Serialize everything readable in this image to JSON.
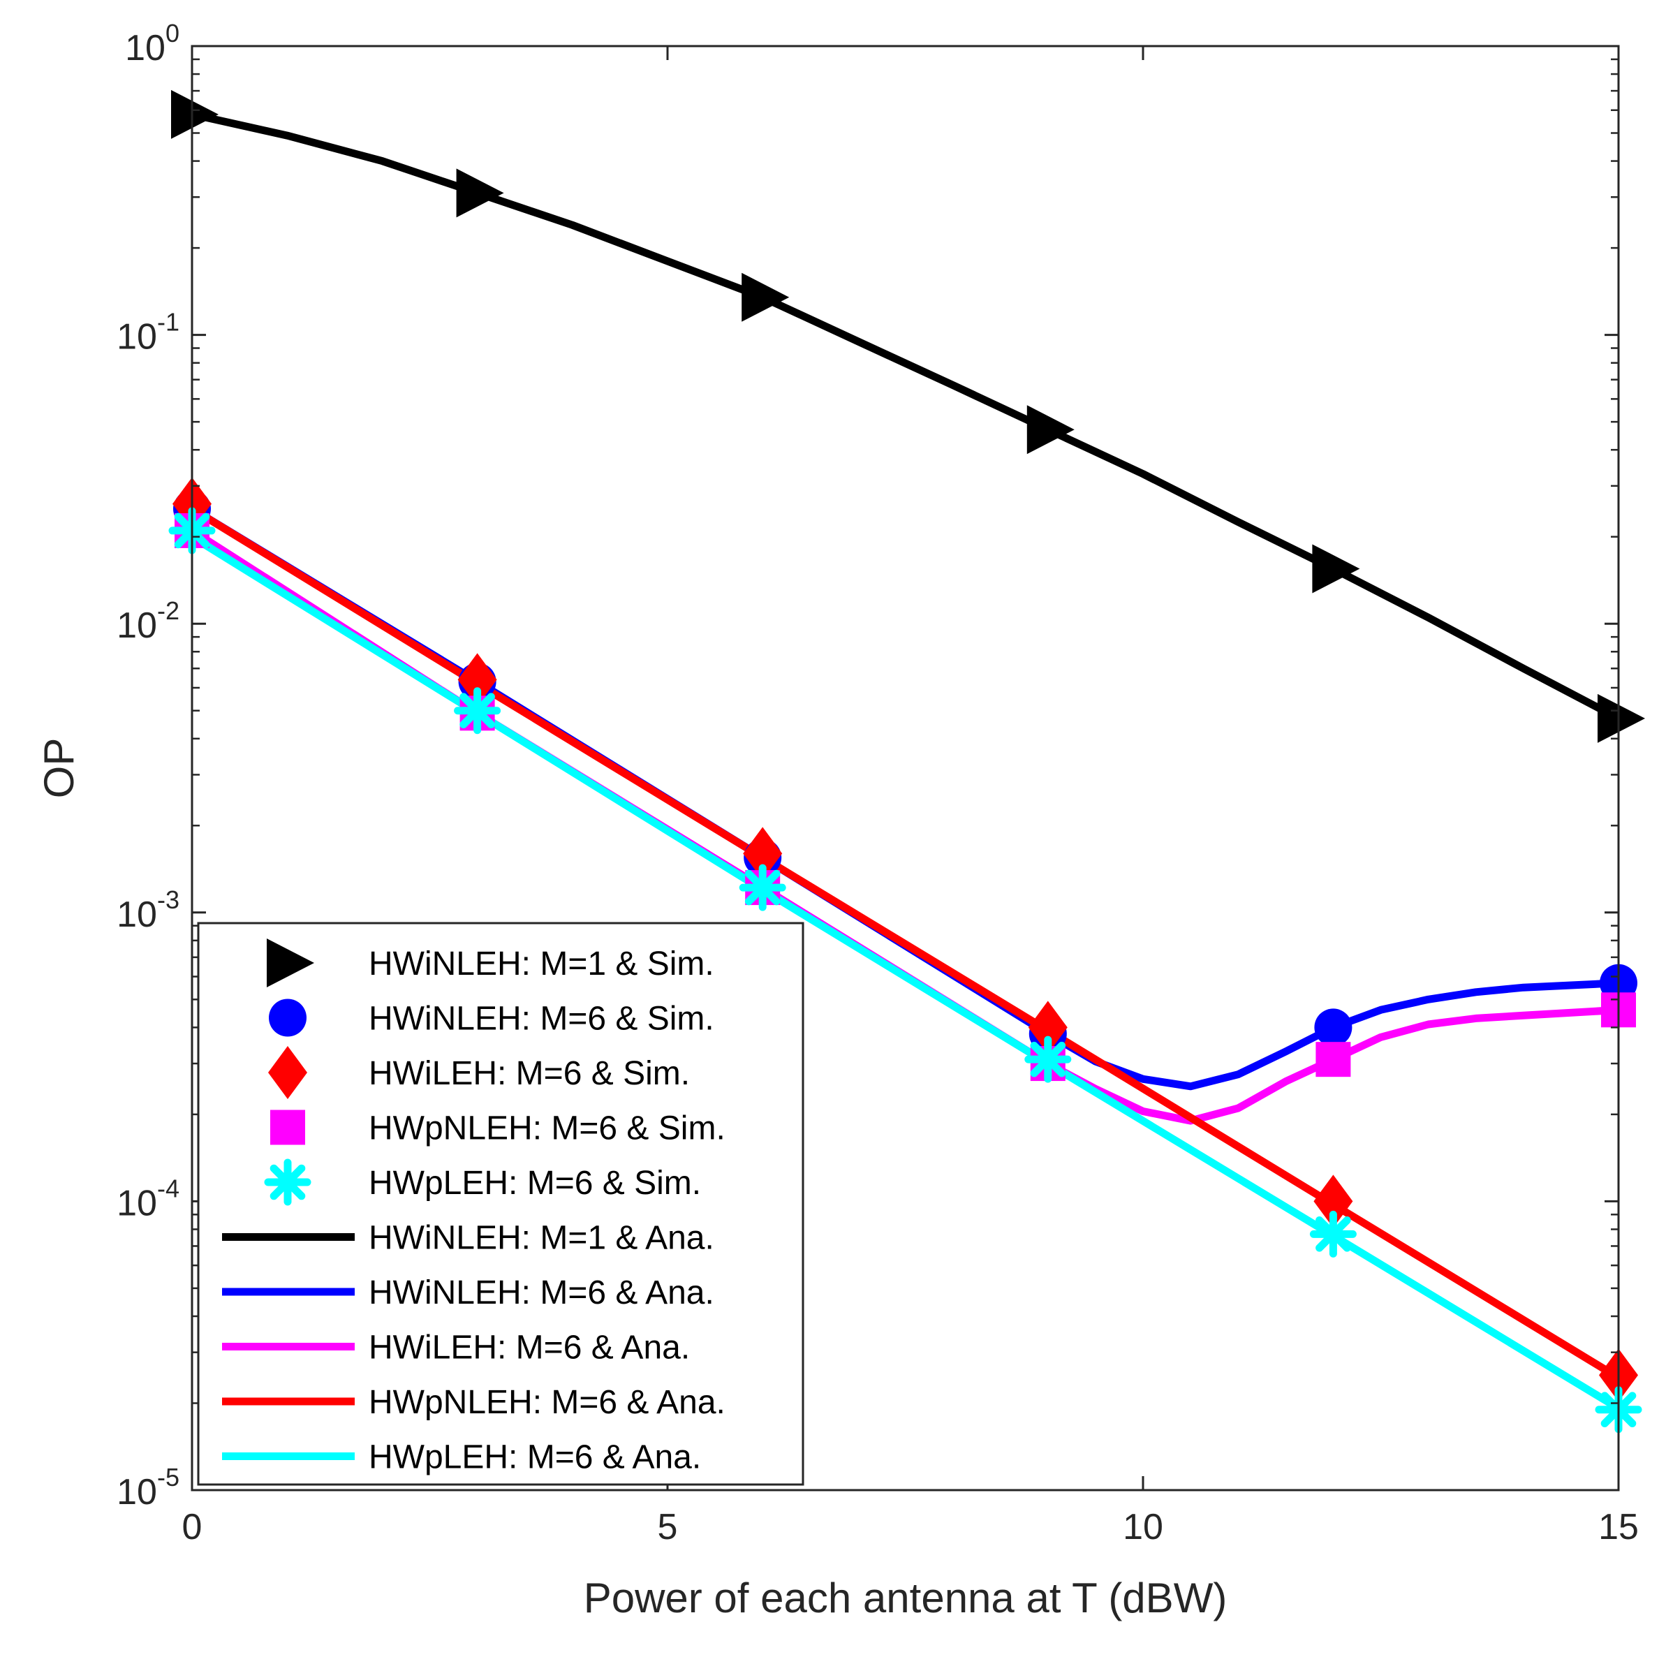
{
  "chart_data": {
    "type": "line",
    "title": "",
    "xlabel": "Power of each antenna at T (dBW)",
    "ylabel": "OP",
    "xlim": [
      0,
      15
    ],
    "ylim_log10": [
      -5,
      0
    ],
    "yscale": "log",
    "grid": false,
    "legend_position": "bottom-left",
    "x_ticks": [
      "0",
      "5",
      "10",
      "15"
    ],
    "x_tick_values": [
      0,
      5,
      10,
      15
    ],
    "y_ticks": [
      {
        "base": "10",
        "exp": "0",
        "value": 1
      },
      {
        "base": "10",
        "exp": "-1",
        "value": 0.1
      },
      {
        "base": "10",
        "exp": "-2",
        "value": 0.01
      },
      {
        "base": "10",
        "exp": "-3",
        "value": 0.001
      },
      {
        "base": "10",
        "exp": "-4",
        "value": 0.0001
      },
      {
        "base": "10",
        "exp": "-5",
        "value": 1e-05
      }
    ],
    "series": [
      {
        "name": "HWiNLEH: M=1 & Sim.",
        "kind": "markers",
        "marker": "triangle-right",
        "color": "#000000",
        "x": [
          0,
          3,
          6,
          9,
          12,
          15
        ],
        "y": [
          0.58,
          0.31,
          0.135,
          0.047,
          0.0155,
          0.0047
        ]
      },
      {
        "name": "HWiNLEH: M=6 & Sim.",
        "kind": "markers",
        "marker": "circle",
        "color": "#0000ff",
        "x": [
          0,
          3,
          6,
          9,
          12,
          15
        ],
        "y": [
          0.025,
          0.0063,
          0.00155,
          0.00038,
          0.0004,
          0.00057
        ]
      },
      {
        "name": "HWiLEH: M=6 & Sim.",
        "kind": "markers",
        "marker": "diamond",
        "color": "#ff0000",
        "x": [
          0,
          3,
          6,
          9,
          12,
          15
        ],
        "y": [
          0.026,
          0.0064,
          0.0016,
          0.0004,
          0.0001,
          2.5e-05
        ]
      },
      {
        "name": "HWpNLEH: M=6 & Sim.",
        "kind": "markers",
        "marker": "square",
        "color": "#ff00ff",
        "x": [
          0,
          3,
          6,
          9,
          12,
          15
        ],
        "y": [
          0.021,
          0.0049,
          0.00122,
          0.0003,
          0.00031,
          0.00046
        ]
      },
      {
        "name": "HWpLEH: M=6 & Sim.",
        "kind": "markers",
        "marker": "asterisk",
        "color": "#00ffff",
        "x": [
          0,
          3,
          6,
          9,
          12,
          15
        ],
        "y": [
          0.021,
          0.005,
          0.00122,
          0.00031,
          7.7e-05,
          1.9e-05
        ]
      },
      {
        "name": "HWiNLEH: M=1 & Ana.",
        "kind": "line",
        "color": "#000000",
        "x": [
          0,
          1,
          2,
          3,
          4,
          5,
          6,
          7,
          8,
          9,
          10,
          11,
          12,
          13,
          14,
          15
        ],
        "y": [
          0.58,
          0.49,
          0.4,
          0.31,
          0.24,
          0.18,
          0.135,
          0.095,
          0.067,
          0.047,
          0.033,
          0.0225,
          0.0155,
          0.0105,
          0.007,
          0.0047
        ]
      },
      {
        "name": "HWiNLEH: M=6 & Ana.",
        "kind": "line",
        "color": "#0000ff",
        "x": [
          0,
          3,
          6,
          9,
          9.5,
          10,
          10.5,
          11,
          11.5,
          12,
          12.5,
          13,
          13.5,
          14,
          15
        ],
        "y": [
          0.025,
          0.0063,
          0.00155,
          0.00038,
          0.000305,
          0.000265,
          0.00025,
          0.000275,
          0.00033,
          0.0004,
          0.00046,
          0.0005,
          0.00053,
          0.00055,
          0.00057
        ]
      },
      {
        "name": "HWiLEH: M=6 & Ana.",
        "kind": "line",
        "color": "#ff00ff",
        "x": [
          0,
          3,
          6,
          9,
          9.5,
          10,
          10.5,
          11,
          11.5,
          12,
          12.5,
          13,
          13.5,
          14,
          15
        ],
        "y": [
          0.021,
          0.0049,
          0.00122,
          0.0003,
          0.000245,
          0.000205,
          0.00019,
          0.00021,
          0.00026,
          0.00031,
          0.00037,
          0.00041,
          0.00043,
          0.00044,
          0.00046
        ]
      },
      {
        "name": "HWpNLEH: M=6 & Ana.",
        "kind": "line",
        "color": "#ff0000",
        "x": [
          0,
          3,
          6,
          9,
          12,
          15
        ],
        "y": [
          0.025,
          0.0062,
          0.00155,
          0.00039,
          9.75e-05,
          2.45e-05
        ]
      },
      {
        "name": "HWpLEH: M=6 & Ana.",
        "kind": "line",
        "color": "#00ffff",
        "x": [
          0,
          3,
          6,
          9,
          12,
          15
        ],
        "y": [
          0.02,
          0.0049,
          0.0012,
          0.0003,
          7.6e-05,
          1.92e-05
        ]
      }
    ]
  }
}
